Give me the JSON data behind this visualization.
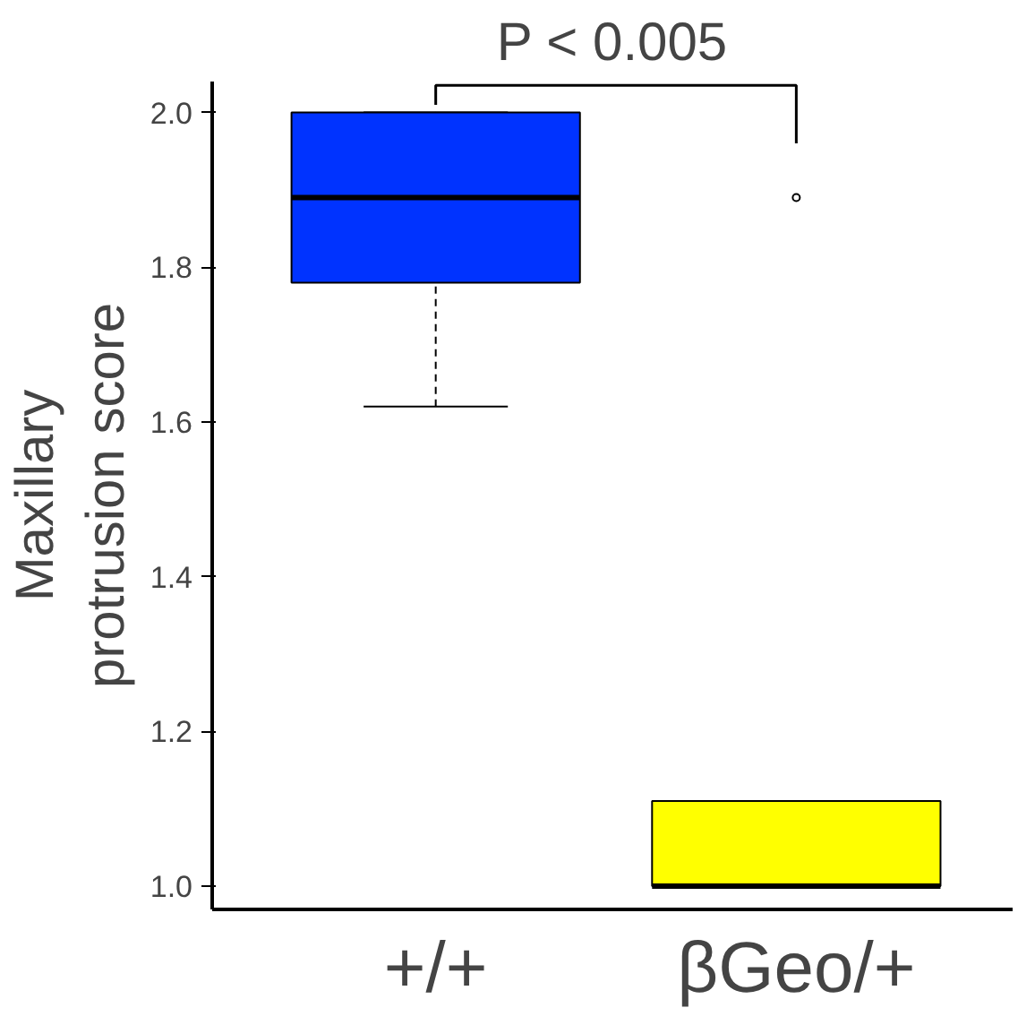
{
  "chart_data": {
    "type": "box",
    "ylabel": "Maxillary\nprotrusion score",
    "categories": [
      "+/+",
      "βGeo/+"
    ],
    "series": [
      {
        "colors": [
          "#0033ff",
          "#ffff00"
        ],
        "boxes": [
          {
            "low": 1.62,
            "q1": 1.78,
            "median": 1.89,
            "q3": 2.0,
            "high": 2.0
          },
          {
            "low": 1.0,
            "q1": 1.0,
            "median": 1.0,
            "q3": 1.11,
            "high": 1.11,
            "outliers": [
              1.89
            ]
          }
        ]
      }
    ],
    "ylim": [
      0.97,
      2.04
    ],
    "yticks": [
      {
        "value": 1.0,
        "label": "1.0"
      },
      {
        "value": 1.2,
        "label": "1.2"
      },
      {
        "value": 1.4,
        "label": "1.4"
      },
      {
        "value": 1.6,
        "label": "1.6"
      },
      {
        "value": 1.8,
        "label": "1.8"
      },
      {
        "value": 2.0,
        "label": "2.0"
      }
    ],
    "grid": false,
    "annotations": [
      "P < 0.005"
    ]
  }
}
